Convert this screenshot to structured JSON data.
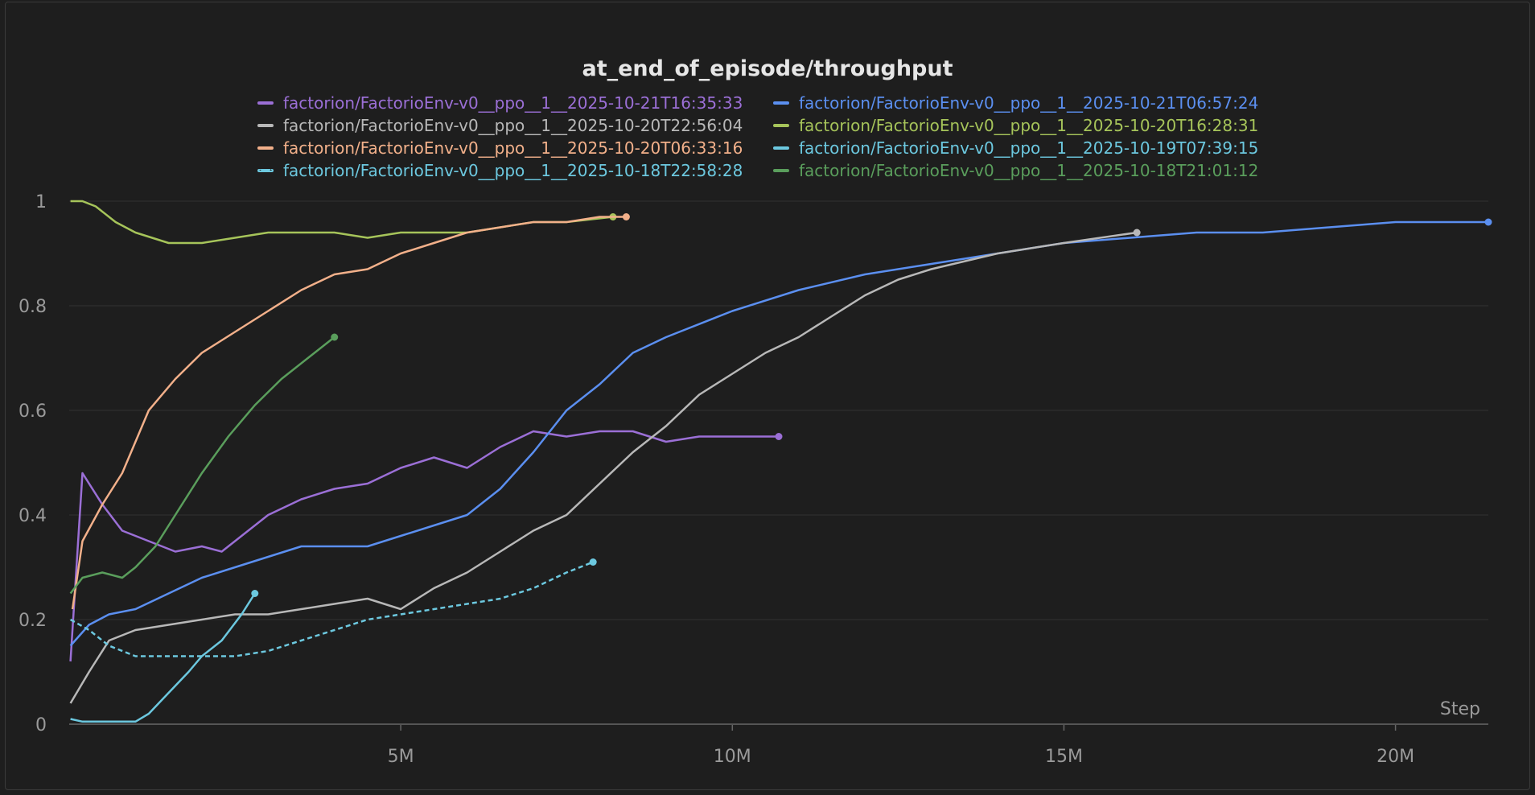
{
  "chart_data": {
    "type": "line",
    "title": "at_end_of_episode/throughput",
    "xlabel": "Step",
    "ylabel": "",
    "xlim": [
      0,
      21400000
    ],
    "ylim": [
      0,
      1
    ],
    "x_ticks": [
      {
        "value": 5000000,
        "label": "5M"
      },
      {
        "value": 10000000,
        "label": "10M"
      },
      {
        "value": 15000000,
        "label": "15M"
      },
      {
        "value": 20000000,
        "label": "20M"
      }
    ],
    "y_ticks": [
      {
        "value": 0,
        "label": "0"
      },
      {
        "value": 0.2,
        "label": "0.2"
      },
      {
        "value": 0.4,
        "label": "0.4"
      },
      {
        "value": 0.6,
        "label": "0.6"
      },
      {
        "value": 0.8,
        "label": "0.8"
      },
      {
        "value": 1,
        "label": "1"
      }
    ],
    "grid": true,
    "legend_position": "top-center",
    "series": [
      {
        "name": "factorion/FactorioEnv-v0__ppo__1__2025-10-21T16:35:33",
        "color": "#9b6fd6",
        "dashed": false,
        "x": [
          0.02,
          0.2,
          0.5,
          0.8,
          1.2,
          1.6,
          2.0,
          2.3,
          2.6,
          3.0,
          3.5,
          4.0,
          4.5,
          5.0,
          5.5,
          6.0,
          6.5,
          7.0,
          7.5,
          8.0,
          8.5,
          9.0,
          9.5,
          10.0,
          10.7
        ],
        "y": [
          0.12,
          0.48,
          0.42,
          0.37,
          0.35,
          0.33,
          0.34,
          0.33,
          0.36,
          0.4,
          0.43,
          0.45,
          0.46,
          0.49,
          0.51,
          0.49,
          0.53,
          0.56,
          0.55,
          0.56,
          0.56,
          0.54,
          0.55,
          0.55,
          0.55
        ]
      },
      {
        "name": "factorion/FactorioEnv-v0__ppo__1__2025-10-21T06:57:24",
        "color": "#5b8ff0",
        "dashed": false,
        "x": [
          0.02,
          0.3,
          0.6,
          1.0,
          1.5,
          2.0,
          2.5,
          3.0,
          3.5,
          4.0,
          4.5,
          5.0,
          5.5,
          6.0,
          6.5,
          7.0,
          7.5,
          8.0,
          8.5,
          9.0,
          10.0,
          11.0,
          12.0,
          13.0,
          14.0,
          15.0,
          16.0,
          17.0,
          18.0,
          19.0,
          20.0,
          21.4
        ],
        "y": [
          0.15,
          0.19,
          0.21,
          0.22,
          0.25,
          0.28,
          0.3,
          0.32,
          0.34,
          0.34,
          0.34,
          0.36,
          0.38,
          0.4,
          0.45,
          0.52,
          0.6,
          0.65,
          0.71,
          0.74,
          0.79,
          0.83,
          0.86,
          0.88,
          0.9,
          0.92,
          0.93,
          0.94,
          0.94,
          0.95,
          0.96,
          0.96
        ]
      },
      {
        "name": "factorion/FactorioEnv-v0__ppo__1__2025-10-20T22:56:04",
        "color": "#b8b8b8",
        "dashed": false,
        "x": [
          0.02,
          0.3,
          0.6,
          1.0,
          1.5,
          2.0,
          2.5,
          3.0,
          3.5,
          4.0,
          4.5,
          5.0,
          5.5,
          6.0,
          6.5,
          7.0,
          7.5,
          8.0,
          8.5,
          9.0,
          9.5,
          10.0,
          10.5,
          11.0,
          11.5,
          12.0,
          12.5,
          13.0,
          14.0,
          15.0,
          16.1
        ],
        "y": [
          0.04,
          0.1,
          0.16,
          0.18,
          0.19,
          0.2,
          0.21,
          0.21,
          0.22,
          0.23,
          0.24,
          0.22,
          0.26,
          0.29,
          0.33,
          0.37,
          0.4,
          0.46,
          0.52,
          0.57,
          0.63,
          0.67,
          0.71,
          0.74,
          0.78,
          0.82,
          0.85,
          0.87,
          0.9,
          0.92,
          0.94
        ]
      },
      {
        "name": "factorion/FactorioEnv-v0__ppo__1__2025-10-20T16:28:31",
        "color": "#a6c45a",
        "dashed": false,
        "x": [
          0.02,
          0.2,
          0.4,
          0.7,
          1.0,
          1.5,
          2.0,
          2.5,
          3.0,
          3.5,
          4.0,
          4.5,
          5.0,
          5.5,
          6.0,
          6.5,
          7.0,
          7.5,
          8.2
        ],
        "y": [
          1.0,
          1.0,
          0.99,
          0.96,
          0.94,
          0.92,
          0.92,
          0.93,
          0.94,
          0.94,
          0.94,
          0.93,
          0.94,
          0.94,
          0.94,
          0.95,
          0.96,
          0.96,
          0.97
        ]
      },
      {
        "name": "factorion/FactorioEnv-v0__ppo__1__2025-10-20T06:33:16",
        "color": "#f2b08a",
        "dashed": false,
        "x": [
          0.05,
          0.2,
          0.5,
          0.8,
          1.2,
          1.6,
          2.0,
          2.5,
          3.0,
          3.5,
          4.0,
          4.5,
          5.0,
          5.5,
          6.0,
          6.5,
          7.0,
          7.5,
          8.0,
          8.4
        ],
        "y": [
          0.22,
          0.35,
          0.42,
          0.48,
          0.6,
          0.66,
          0.71,
          0.75,
          0.79,
          0.83,
          0.86,
          0.87,
          0.9,
          0.92,
          0.94,
          0.95,
          0.96,
          0.96,
          0.97,
          0.97
        ]
      },
      {
        "name": "factorion/FactorioEnv-v0__ppo__1__2025-10-19T07:39:15",
        "color": "#6cc8df",
        "dashed": false,
        "x": [
          0.02,
          0.2,
          0.5,
          0.8,
          1.0,
          1.2,
          1.5,
          1.8,
          2.0,
          2.3,
          2.6,
          2.8
        ],
        "y": [
          0.01,
          0.005,
          0.005,
          0.005,
          0.005,
          0.02,
          0.06,
          0.1,
          0.13,
          0.16,
          0.21,
          0.25
        ]
      },
      {
        "name": "factorion/FactorioEnv-v0__ppo__1__2025-10-18T22:58:28",
        "color": "#6cc8df",
        "dashed": true,
        "x": [
          0.02,
          0.3,
          0.6,
          1.0,
          1.5,
          2.0,
          2.5,
          3.0,
          3.5,
          4.0,
          4.5,
          5.0,
          5.5,
          6.0,
          6.5,
          7.0,
          7.5,
          7.9
        ],
        "y": [
          0.2,
          0.18,
          0.15,
          0.13,
          0.13,
          0.13,
          0.13,
          0.14,
          0.16,
          0.18,
          0.2,
          0.21,
          0.22,
          0.23,
          0.24,
          0.26,
          0.29,
          0.31
        ]
      },
      {
        "name": "factorion/FactorioEnv-v0__ppo__1__2025-10-18T21:01:12",
        "color": "#5a9e5c",
        "dashed": false,
        "x": [
          0.02,
          0.2,
          0.5,
          0.8,
          1.0,
          1.3,
          1.6,
          2.0,
          2.4,
          2.8,
          3.2,
          3.6,
          4.0
        ],
        "y": [
          0.25,
          0.28,
          0.29,
          0.28,
          0.3,
          0.34,
          0.4,
          0.48,
          0.55,
          0.61,
          0.66,
          0.7,
          0.74
        ]
      }
    ]
  }
}
